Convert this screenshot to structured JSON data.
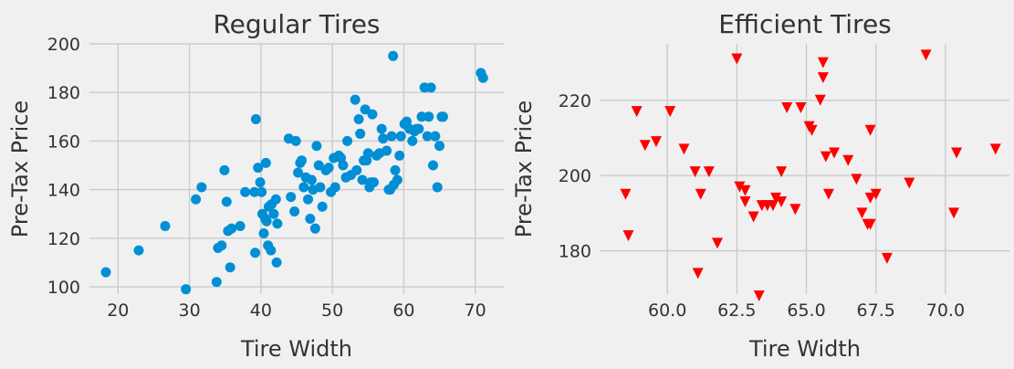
{
  "chart_data": [
    {
      "type": "scatter",
      "title": "Regular Tires",
      "xlabel": "Tire Width",
      "ylabel": "Pre-Tax Price",
      "xlim": [
        16,
        74
      ],
      "ylim": [
        97,
        200
      ],
      "xticks": [
        20,
        30,
        40,
        50,
        60,
        70
      ],
      "yticks": [
        100,
        120,
        140,
        160,
        180,
        200
      ],
      "xtick_labels": [
        "20",
        "30",
        "40",
        "50",
        "60",
        "70"
      ],
      "ytick_labels": [
        "100",
        "120",
        "140",
        "160",
        "180",
        "200"
      ],
      "grid": true,
      "series": [
        {
          "marker": "circle",
          "color": "#008fd5",
          "x": [
            18.3,
            22.9,
            26.6,
            29.5,
            30.9,
            31.7,
            33.8,
            34.0,
            34.5,
            34.9,
            35.2,
            35.4,
            35.7,
            35.9,
            37.1,
            37.8,
            39.1,
            39.2,
            39.3,
            39.6,
            39.9,
            40.1,
            40.2,
            40.4,
            40.6,
            40.7,
            40.8,
            41.0,
            41.1,
            41.4,
            41.5,
            41.8,
            42.1,
            42.2,
            42.3,
            43.9,
            44.2,
            44.7,
            44.9,
            45.2,
            45.5,
            45.7,
            46.0,
            46.3,
            46.6,
            46.9,
            47.1,
            47.3,
            47.6,
            47.8,
            48.1,
            48.3,
            48.6,
            49.1,
            49.5,
            49.8,
            50.2,
            50.4,
            50.9,
            51.2,
            51.5,
            51.9,
            52.1,
            52.6,
            53.2,
            53.4,
            53.7,
            53.9,
            54.2,
            54.4,
            54.6,
            54.8,
            55.0,
            55.2,
            55.4,
            55.6,
            55.8,
            56.2,
            56.6,
            56.9,
            57.1,
            57.6,
            57.9,
            58.1,
            58.3,
            58.5,
            58.6,
            58.8,
            59.1,
            59.4,
            59.6,
            60.1,
            60.4,
            60.8,
            61.2,
            61.5,
            61.8,
            62.1,
            62.5,
            62.9,
            63.3,
            63.5,
            63.8,
            64.1,
            64.4,
            64.7,
            65.0,
            65.3,
            65.5,
            70.8,
            71.1
          ],
          "y": [
            106,
            115,
            125,
            99,
            136,
            141,
            102,
            116,
            117,
            148,
            135,
            123,
            108,
            124,
            125,
            139,
            139,
            114,
            169,
            149,
            143,
            139,
            130,
            122,
            128,
            151,
            127,
            117,
            133,
            115,
            134,
            130,
            136,
            110,
            126,
            161,
            137,
            131,
            160,
            147,
            151,
            152,
            141,
            145,
            136,
            128,
            144,
            140,
            124,
            158,
            150,
            141,
            133,
            148,
            149,
            139,
            153,
            141,
            154,
            153,
            150,
            145,
            160,
            146,
            177,
            148,
            169,
            163,
            144,
            152,
            173,
            152,
            155,
            141,
            143,
            171,
            143,
            154,
            155,
            165,
            161,
            156,
            140,
            140,
            162,
            195,
            142,
            148,
            144,
            154,
            162,
            167,
            168,
            165,
            160,
            164,
            165,
            165,
            170,
            182,
            162,
            170,
            182,
            150,
            162,
            141,
            158,
            170,
            170,
            188,
            186
          ]
        }
      ]
    },
    {
      "type": "scatter",
      "title": "Efficient Tires",
      "xlabel": "Tire Width",
      "ylabel": "Pre-Tax Price",
      "xlim": [
        57.6,
        72.3
      ],
      "ylim": [
        168.5,
        235
      ],
      "xticks": [
        60.0,
        62.5,
        65.0,
        67.5,
        70.0
      ],
      "yticks": [
        180,
        200,
        220
      ],
      "xtick_labels": [
        "60.0",
        "62.5",
        "65.0",
        "67.5",
        "70.0"
      ],
      "ytick_labels": [
        "180",
        "200",
        "220"
      ],
      "grid": true,
      "series": [
        {
          "marker": "triangle-down",
          "color": "#ff0000",
          "x": [
            58.5,
            58.6,
            58.9,
            59.2,
            59.6,
            60.1,
            60.6,
            61.0,
            61.1,
            61.2,
            61.5,
            61.8,
            62.5,
            62.6,
            62.8,
            62.8,
            63.1,
            63.3,
            63.4,
            63.6,
            63.8,
            63.9,
            64.1,
            64.1,
            64.3,
            64.6,
            64.8,
            65.1,
            65.2,
            65.5,
            65.6,
            65.6,
            65.7,
            65.8,
            66.0,
            66.5,
            66.8,
            67.0,
            67.2,
            67.3,
            67.3,
            67.3,
            67.5,
            67.9,
            68.7,
            69.3,
            70.3,
            70.4,
            71.8
          ],
          "y": [
            195,
            184,
            217,
            208,
            209,
            217,
            207,
            201,
            174,
            195,
            201,
            182,
            231,
            197,
            196,
            193,
            189,
            168,
            192,
            192,
            192,
            194,
            193,
            201,
            218,
            191,
            218,
            213,
            212,
            220,
            230,
            226,
            205,
            195,
            206,
            204,
            199,
            190,
            187,
            187,
            194,
            212,
            195,
            178,
            198,
            232,
            190,
            206,
            207
          ]
        }
      ]
    }
  ]
}
